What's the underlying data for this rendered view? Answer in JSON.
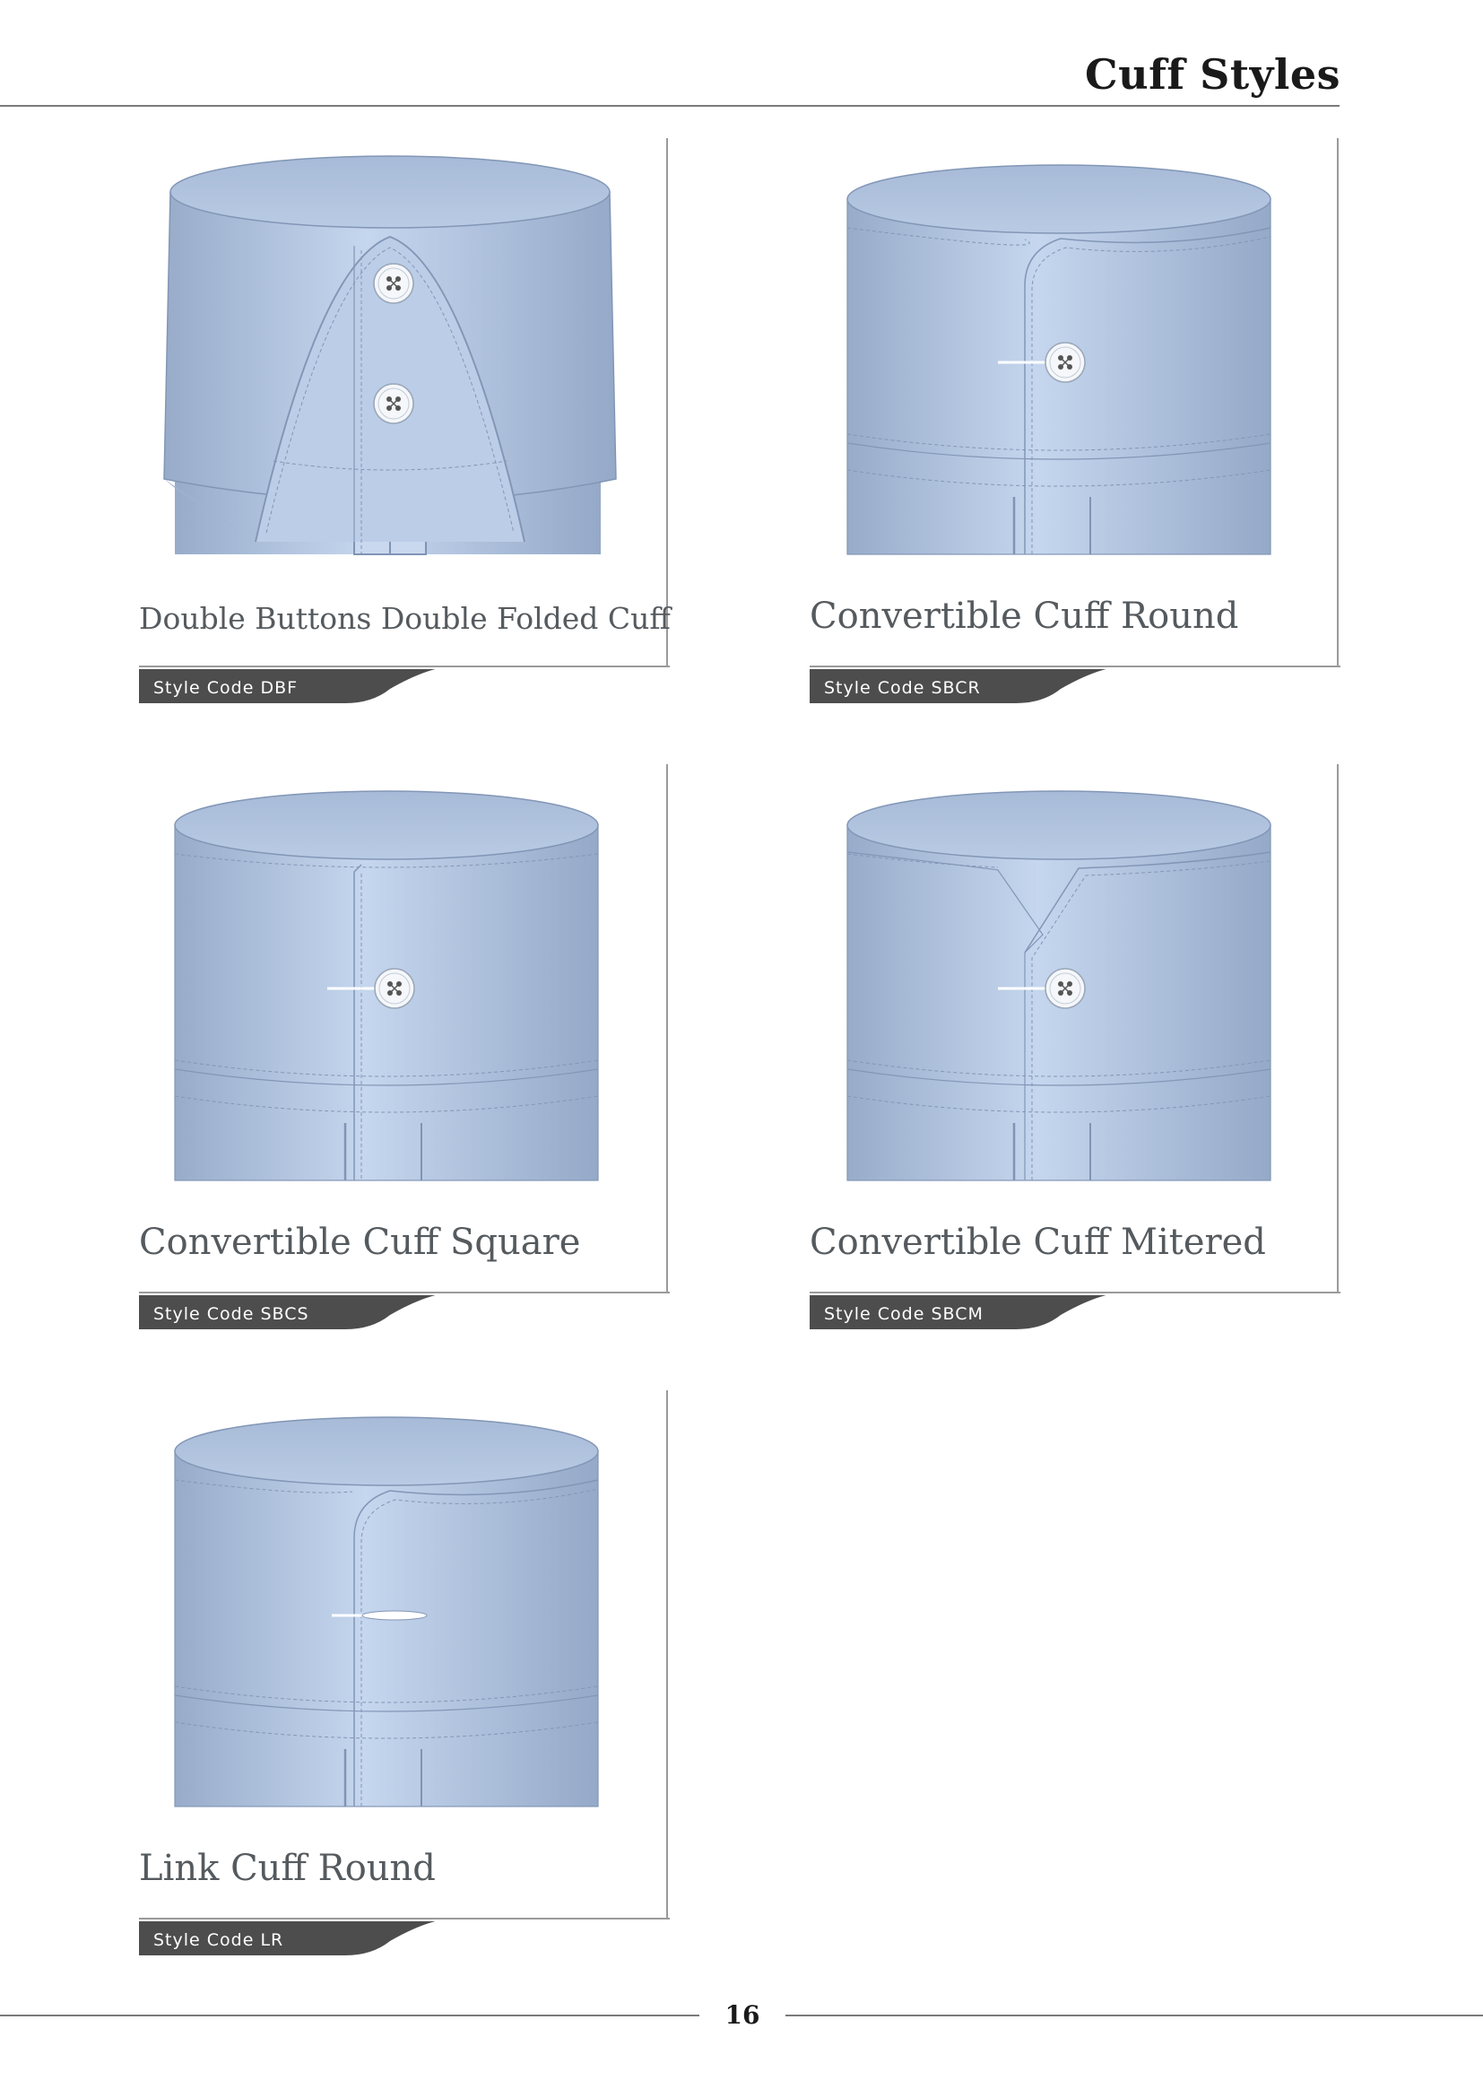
{
  "header": {
    "title": "Cuff Styles"
  },
  "cuffs": [
    {
      "name": "Double Buttons Double Folded Cuff",
      "style_code": "Style Code DBF"
    },
    {
      "name": "Convertible Cuff Round",
      "style_code": "Style Code SBCR"
    },
    {
      "name": "Convertible Cuff Square",
      "style_code": "Style Code SBCS"
    },
    {
      "name": "Convertible Cuff Mitered",
      "style_code": "Style Code SBCM"
    },
    {
      "name": "Link Cuff Round",
      "style_code": "Style Code LR"
    }
  ],
  "footer": {
    "page_number": "16"
  },
  "colors": {
    "cuff_blue": "#b3c6e2",
    "tag_gray": "#4d4d4d",
    "rule_gray": "#7a7a7a"
  }
}
